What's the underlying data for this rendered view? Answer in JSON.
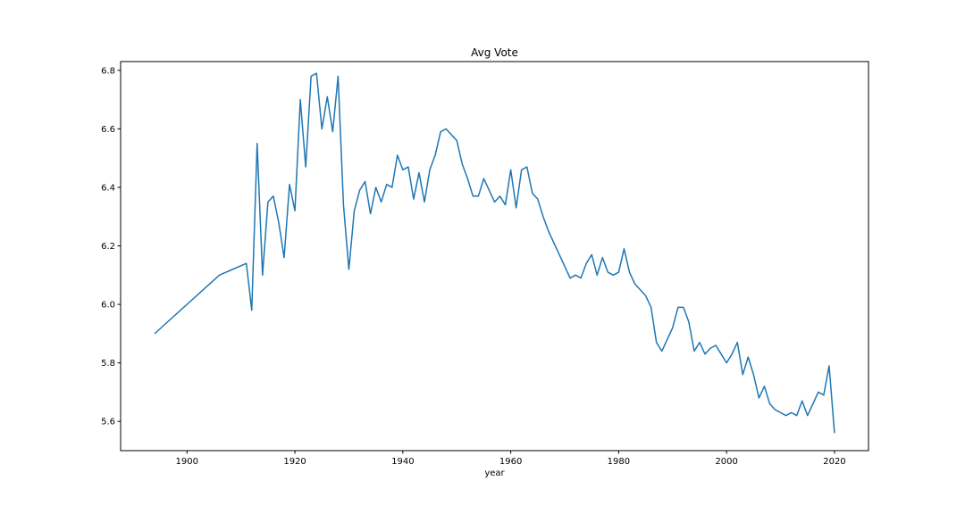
{
  "chart_data": {
    "type": "line",
    "title": "Avg Vote",
    "xlabel": "year",
    "ylabel": "",
    "xlim": [
      1887.7,
      2026.3
    ],
    "ylim": [
      5.5,
      6.83
    ],
    "xticks": [
      1900,
      1920,
      1940,
      1960,
      1980,
      2000,
      2020
    ],
    "yticks": [
      5.6,
      5.8,
      6.0,
      6.2,
      6.4,
      6.6,
      6.8
    ],
    "ytick_labels": [
      "5.6",
      "5.8",
      "6.0",
      "6.2",
      "6.4",
      "6.6",
      "6.8"
    ],
    "grid": false,
    "legend": "none",
    "series_color": "#1f77b4",
    "series": [
      {
        "x": [
          1894,
          1906,
          1911,
          1912,
          1913,
          1914,
          1915,
          1916,
          1917,
          1918,
          1919,
          1920,
          1921,
          1922,
          1923,
          1924,
          1925,
          1926,
          1927,
          1928,
          1929,
          1930,
          1931,
          1932,
          1933,
          1934,
          1935,
          1936,
          1937,
          1938,
          1939,
          1940,
          1941,
          1942,
          1943,
          1944,
          1945,
          1946,
          1947,
          1948,
          1949,
          1950,
          1951,
          1952,
          1953,
          1954,
          1955,
          1956,
          1957,
          1958,
          1959,
          1960,
          1961,
          1962,
          1963,
          1964,
          1965,
          1966,
          1967,
          1968,
          1969,
          1970,
          1971,
          1972,
          1973,
          1974,
          1975,
          1976,
          1977,
          1978,
          1979,
          1980,
          1981,
          1982,
          1983,
          1984,
          1985,
          1986,
          1987,
          1988,
          1989,
          1990,
          1991,
          1992,
          1993,
          1994,
          1995,
          1996,
          1997,
          1998,
          1999,
          2000,
          2001,
          2002,
          2003,
          2004,
          2005,
          2006,
          2007,
          2008,
          2009,
          2010,
          2011,
          2012,
          2013,
          2014,
          2015,
          2016,
          2017,
          2018,
          2019,
          2020
        ],
        "values": [
          5.9,
          6.1,
          6.14,
          5.98,
          6.55,
          6.1,
          6.35,
          6.37,
          6.28,
          6.16,
          6.41,
          6.32,
          6.7,
          6.47,
          6.78,
          6.79,
          6.6,
          6.71,
          6.59,
          6.78,
          6.34,
          6.12,
          6.32,
          6.39,
          6.42,
          6.31,
          6.4,
          6.35,
          6.41,
          6.4,
          6.51,
          6.46,
          6.47,
          6.36,
          6.45,
          6.35,
          6.46,
          6.51,
          6.59,
          6.6,
          6.58,
          6.56,
          6.48,
          6.43,
          6.37,
          6.37,
          6.43,
          6.39,
          6.35,
          6.37,
          6.34,
          6.46,
          6.33,
          6.46,
          6.47,
          6.38,
          6.36,
          6.3,
          6.25,
          6.21,
          6.17,
          6.13,
          6.09,
          6.1,
          6.09,
          6.14,
          6.17,
          6.1,
          6.16,
          6.11,
          6.1,
          6.11,
          6.19,
          6.11,
          6.07,
          6.05,
          6.03,
          5.99,
          5.87,
          5.84,
          5.88,
          5.92,
          5.99,
          5.99,
          5.94,
          5.84,
          5.87,
          5.83,
          5.85,
          5.86,
          5.83,
          5.8,
          5.83,
          5.87,
          5.76,
          5.82,
          5.76,
          5.68,
          5.72,
          5.66,
          5.64,
          5.63,
          5.62,
          5.63,
          5.62,
          5.67,
          5.62,
          5.66,
          5.7,
          5.69,
          5.79,
          5.56
        ]
      }
    ]
  }
}
